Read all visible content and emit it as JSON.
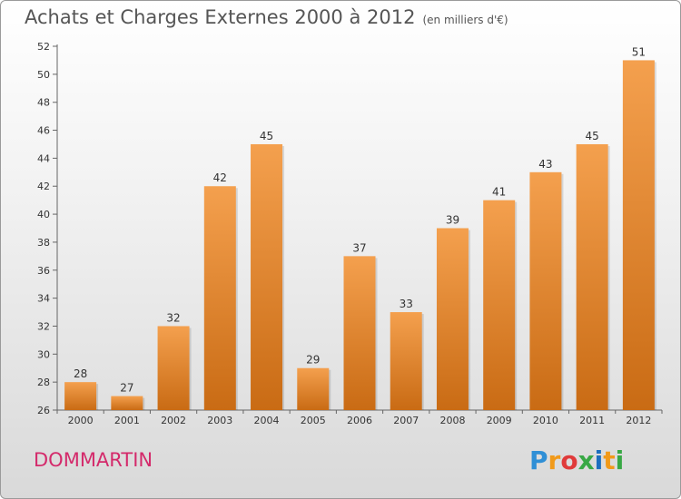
{
  "header": {
    "title": "Achats et Charges Externes 2000 à 2012",
    "unit": "(en milliers d'€)"
  },
  "footer": {
    "commune": "DOMMARTIN",
    "logo_letters": [
      "P",
      "r",
      "o",
      "x",
      "i",
      "t",
      "i"
    ],
    "logo_colors": [
      "#2f8fd6",
      "#f19a1a",
      "#e03a3a",
      "#38a845",
      "#1d6fbf",
      "#f19a1a",
      "#38a845"
    ]
  },
  "colors": {
    "bar_top": "#f4a04e",
    "bar_bottom": "#c96b14",
    "commune": "#d42a6b"
  },
  "chart_data": {
    "type": "bar",
    "title": "Achats et Charges Externes 2000 à 2012",
    "subtitle": "(en milliers d'€)",
    "categories": [
      "2000",
      "2001",
      "2002",
      "2003",
      "2004",
      "2005",
      "2006",
      "2007",
      "2008",
      "2009",
      "2010",
      "2011",
      "2012"
    ],
    "values": [
      28,
      27,
      32,
      42,
      45,
      29,
      37,
      33,
      39,
      41,
      43,
      45,
      51
    ],
    "ylim": [
      26,
      52
    ],
    "yticks": [
      26,
      28,
      30,
      32,
      34,
      36,
      38,
      40,
      42,
      44,
      46,
      48,
      50,
      52
    ],
    "grid": false,
    "legend": "none"
  }
}
